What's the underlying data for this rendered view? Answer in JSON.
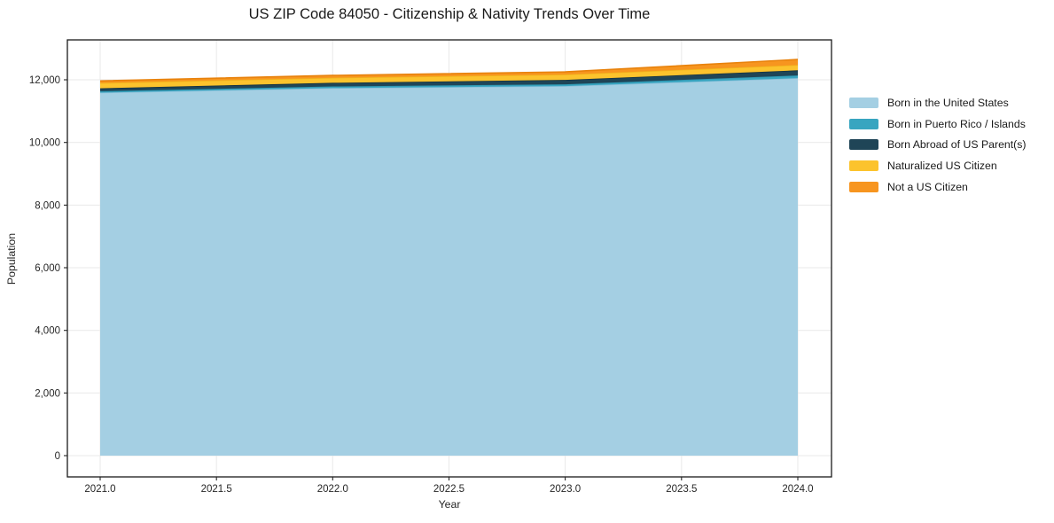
{
  "chart_data": {
    "type": "area",
    "title": "US ZIP Code 84050 - Citizenship & Nativity Trends Over Time",
    "xlabel": "Year",
    "ylabel": "Population",
    "x": [
      2021,
      2022,
      2023,
      2024
    ],
    "series": [
      {
        "name": "Born in the United States",
        "color": "#a4cfe3",
        "edge": "#8bc0da",
        "values": [
          11590,
          11735,
          11800,
          12055
        ]
      },
      {
        "name": "Born in Puerto Rico / Islands",
        "color": "#38a5c0",
        "edge": "#2e96b1",
        "values": [
          45,
          55,
          57,
          85
        ]
      },
      {
        "name": "Born Abroad of US Parent(s)",
        "color": "#1f4557",
        "edge": "#16323f",
        "values": [
          95,
          115,
          140,
          165
        ]
      },
      {
        "name": "Naturalized US Citizen",
        "color": "#fcc32d",
        "edge": "#f0b41c",
        "values": [
          170,
          160,
          170,
          170
        ]
      },
      {
        "name": "Not a US Citizen",
        "color": "#f7951f",
        "edge": "#e8820c",
        "values": [
          65,
          75,
          85,
          175
        ]
      }
    ],
    "x_ticks": [
      2021.0,
      2021.5,
      2022.0,
      2022.5,
      2023.0,
      2023.5,
      2024.0
    ],
    "x_tick_labels": [
      "2021.0",
      "2021.5",
      "2022.0",
      "2022.5",
      "2023.0",
      "2023.5",
      "2024.0"
    ],
    "y_ticks": [
      0,
      2000,
      4000,
      6000,
      8000,
      10000,
      12000
    ],
    "y_tick_labels": [
      "0",
      "2,000",
      "4,000",
      "6,000",
      "8,000",
      "10,000",
      "12,000"
    ],
    "xlim": [
      2020.859,
      2024.145
    ],
    "ylim": [
      -680,
      13275
    ],
    "grid": true,
    "legend_position": "right-outside",
    "spine_color": "#1a1a1a",
    "grid_color": "#e9e9e9"
  }
}
